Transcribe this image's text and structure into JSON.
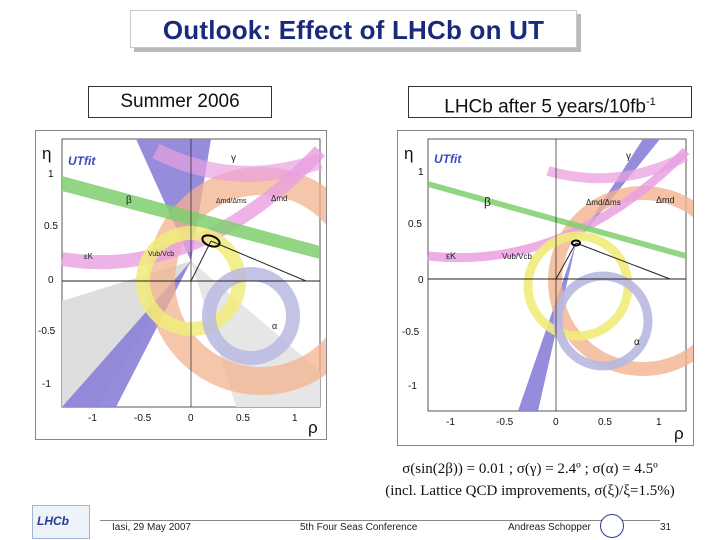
{
  "slide": {
    "title": "Outlook: Effect of LHCb on UT",
    "left_label": "Summer 2006",
    "right_label_main": "LHCb after 5 years/10fb",
    "right_label_sup": "-1"
  },
  "caption": {
    "line1": "σ(sin(2β)) = 0.01 ; σ(γ) = 2.4º ; σ(α) = 4.5º",
    "line2": "(incl. Lattice QCD improvements, σ(ξ)/ξ=1.5%)"
  },
  "footer": {
    "logo_text": "LHCb",
    "date": "Iasi, 29 May 2007",
    "conference": "5th Four Seas Conference",
    "author": "Andreas Schopper",
    "page": "31"
  },
  "left_plot": {
    "utfit": "UTfit",
    "y_axis": "η",
    "x_axis": "ρ",
    "y_ticks": [
      "1",
      "0.5",
      "0",
      "-0.5",
      "-1"
    ],
    "x_ticks": [
      "-1",
      "-0.5",
      "0",
      "0.5",
      "1"
    ],
    "labels": {
      "gamma": "γ",
      "beta": "β",
      "eps": "εK",
      "dmd": "Δmd",
      "dmd_dms": "Δmd/Δms",
      "vub": "Vub/Vcb",
      "alpha": "α"
    }
  },
  "right_plot": {
    "utfit": "UTfit",
    "y_axis": "η",
    "x_axis": "ρ",
    "y_ticks": [
      "1",
      "0.5",
      "0",
      "-0.5",
      "-1"
    ],
    "x_ticks": [
      "-1",
      "-0.5",
      "0",
      "0.5",
      "1"
    ],
    "labels": {
      "gamma": "γ",
      "beta": "β",
      "eps": "εK",
      "dmd": "Δmd",
      "dmd_dms": "Δmd/Δms",
      "vub": "Vub/Vcb",
      "alpha": "α"
    }
  },
  "colors": {
    "title": "#1a2a7a",
    "gamma_band": "#8a7fd8",
    "beta_band": "#7fcf6f",
    "dms_band": "#f3b38f",
    "eps_band": "#e9a0e0",
    "vub_band": "#f1ec7a",
    "dmd_band": "#b8b8e0"
  }
}
